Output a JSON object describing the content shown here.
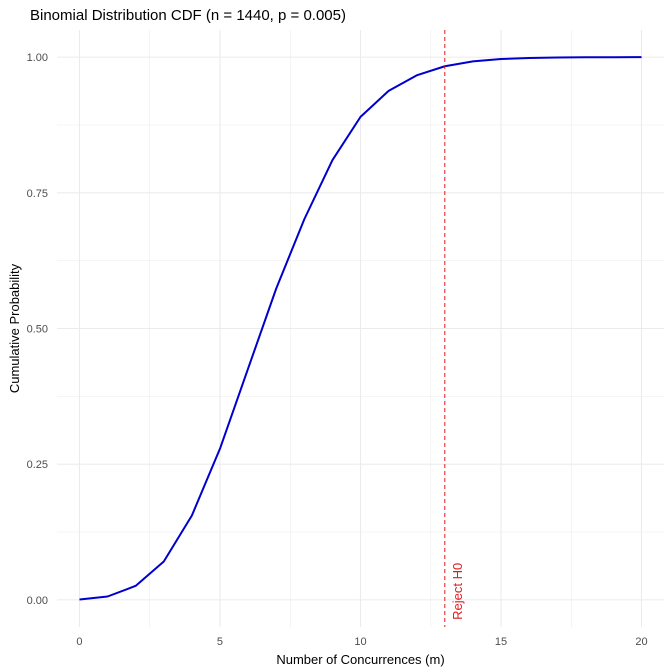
{
  "chart_data": {
    "type": "line",
    "title": "Binomial Distribution CDF (n = 1440, p = 0.005)",
    "xlabel": "Number of Concurrences (m)",
    "ylabel": "Cumulative Probability",
    "xlim": [
      -0.8,
      20.8
    ],
    "ylim": [
      -0.05,
      1.05
    ],
    "x_ticks": [
      0,
      5,
      10,
      15,
      20
    ],
    "x_tick_labels": [
      "0",
      "5",
      "10",
      "15",
      "20"
    ],
    "y_ticks": [
      0,
      0.25,
      0.5,
      0.75,
      1
    ],
    "y_tick_labels": [
      "0.00",
      "0.25",
      "0.50",
      "0.75",
      "1.00"
    ],
    "grid": true,
    "series": [
      {
        "color": "#0000cd",
        "x": [
          0,
          1,
          2,
          3,
          4,
          5,
          6,
          7,
          8,
          9,
          10,
          11,
          12,
          13,
          14,
          15,
          16,
          17,
          18,
          19,
          20
        ],
        "values": [
          0.0007,
          0.0062,
          0.0258,
          0.0707,
          0.1555,
          0.2786,
          0.4262,
          0.5735,
          0.7013,
          0.8102,
          0.8899,
          0.9378,
          0.9665,
          0.9832,
          0.9921,
          0.9965,
          0.9985,
          0.9994,
          0.9998,
          0.9999,
          1.0
        ]
      }
    ],
    "vline": {
      "x": 13,
      "color": "#e41a1c",
      "label": "Reject H0",
      "style": "dashed"
    }
  },
  "colors": {
    "grid": "#ebebeb",
    "line": "#0000cd",
    "threshold": "#e41a1c"
  }
}
